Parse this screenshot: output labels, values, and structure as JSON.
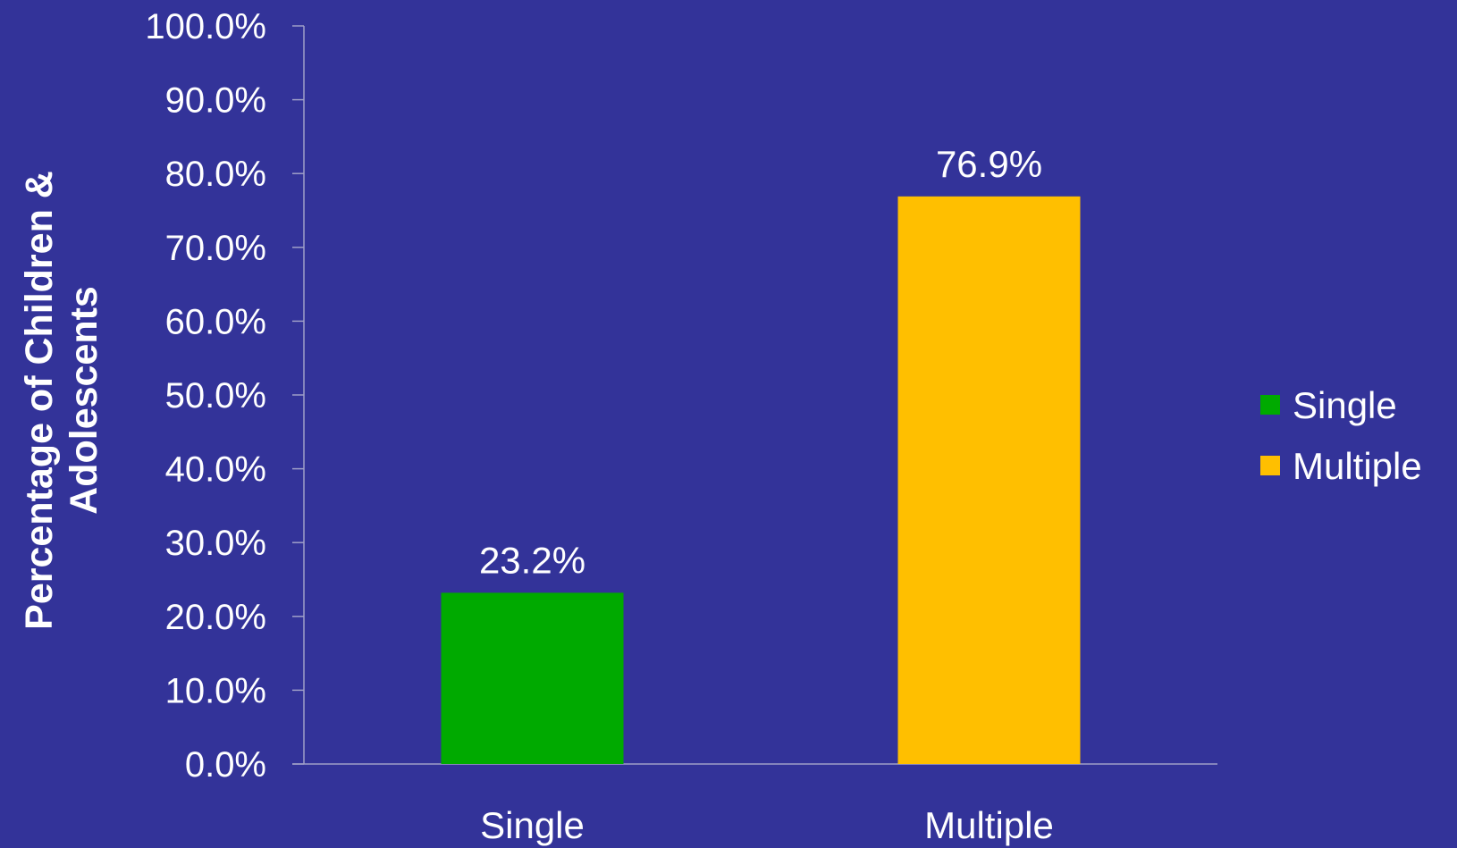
{
  "chart_data": {
    "type": "bar",
    "categories": [
      "Single",
      "Multiple"
    ],
    "values": [
      23.2,
      76.9
    ],
    "data_labels": [
      "23.2%",
      "76.9%"
    ],
    "title": "",
    "xlabel": "",
    "ylabel_lines": [
      "Percentage of Children &",
      "Adolescents"
    ],
    "ylim": [
      0,
      100
    ],
    "yticks": [
      0,
      10,
      20,
      30,
      40,
      50,
      60,
      70,
      80,
      90,
      100
    ],
    "ytick_labels": [
      "0.0%",
      "10.0%",
      "20.0%",
      "30.0%",
      "40.0%",
      "50.0%",
      "60.0%",
      "70.0%",
      "80.0%",
      "90.0%",
      "100.0%"
    ],
    "grid": false,
    "legend": {
      "placement": "right",
      "entries": [
        "Single",
        "Multiple"
      ]
    },
    "colors": {
      "background": "#333399",
      "axis": "#a0a0c8",
      "text": "#ffffff",
      "series": [
        "#00aa00",
        "#ffbf00"
      ]
    }
  }
}
